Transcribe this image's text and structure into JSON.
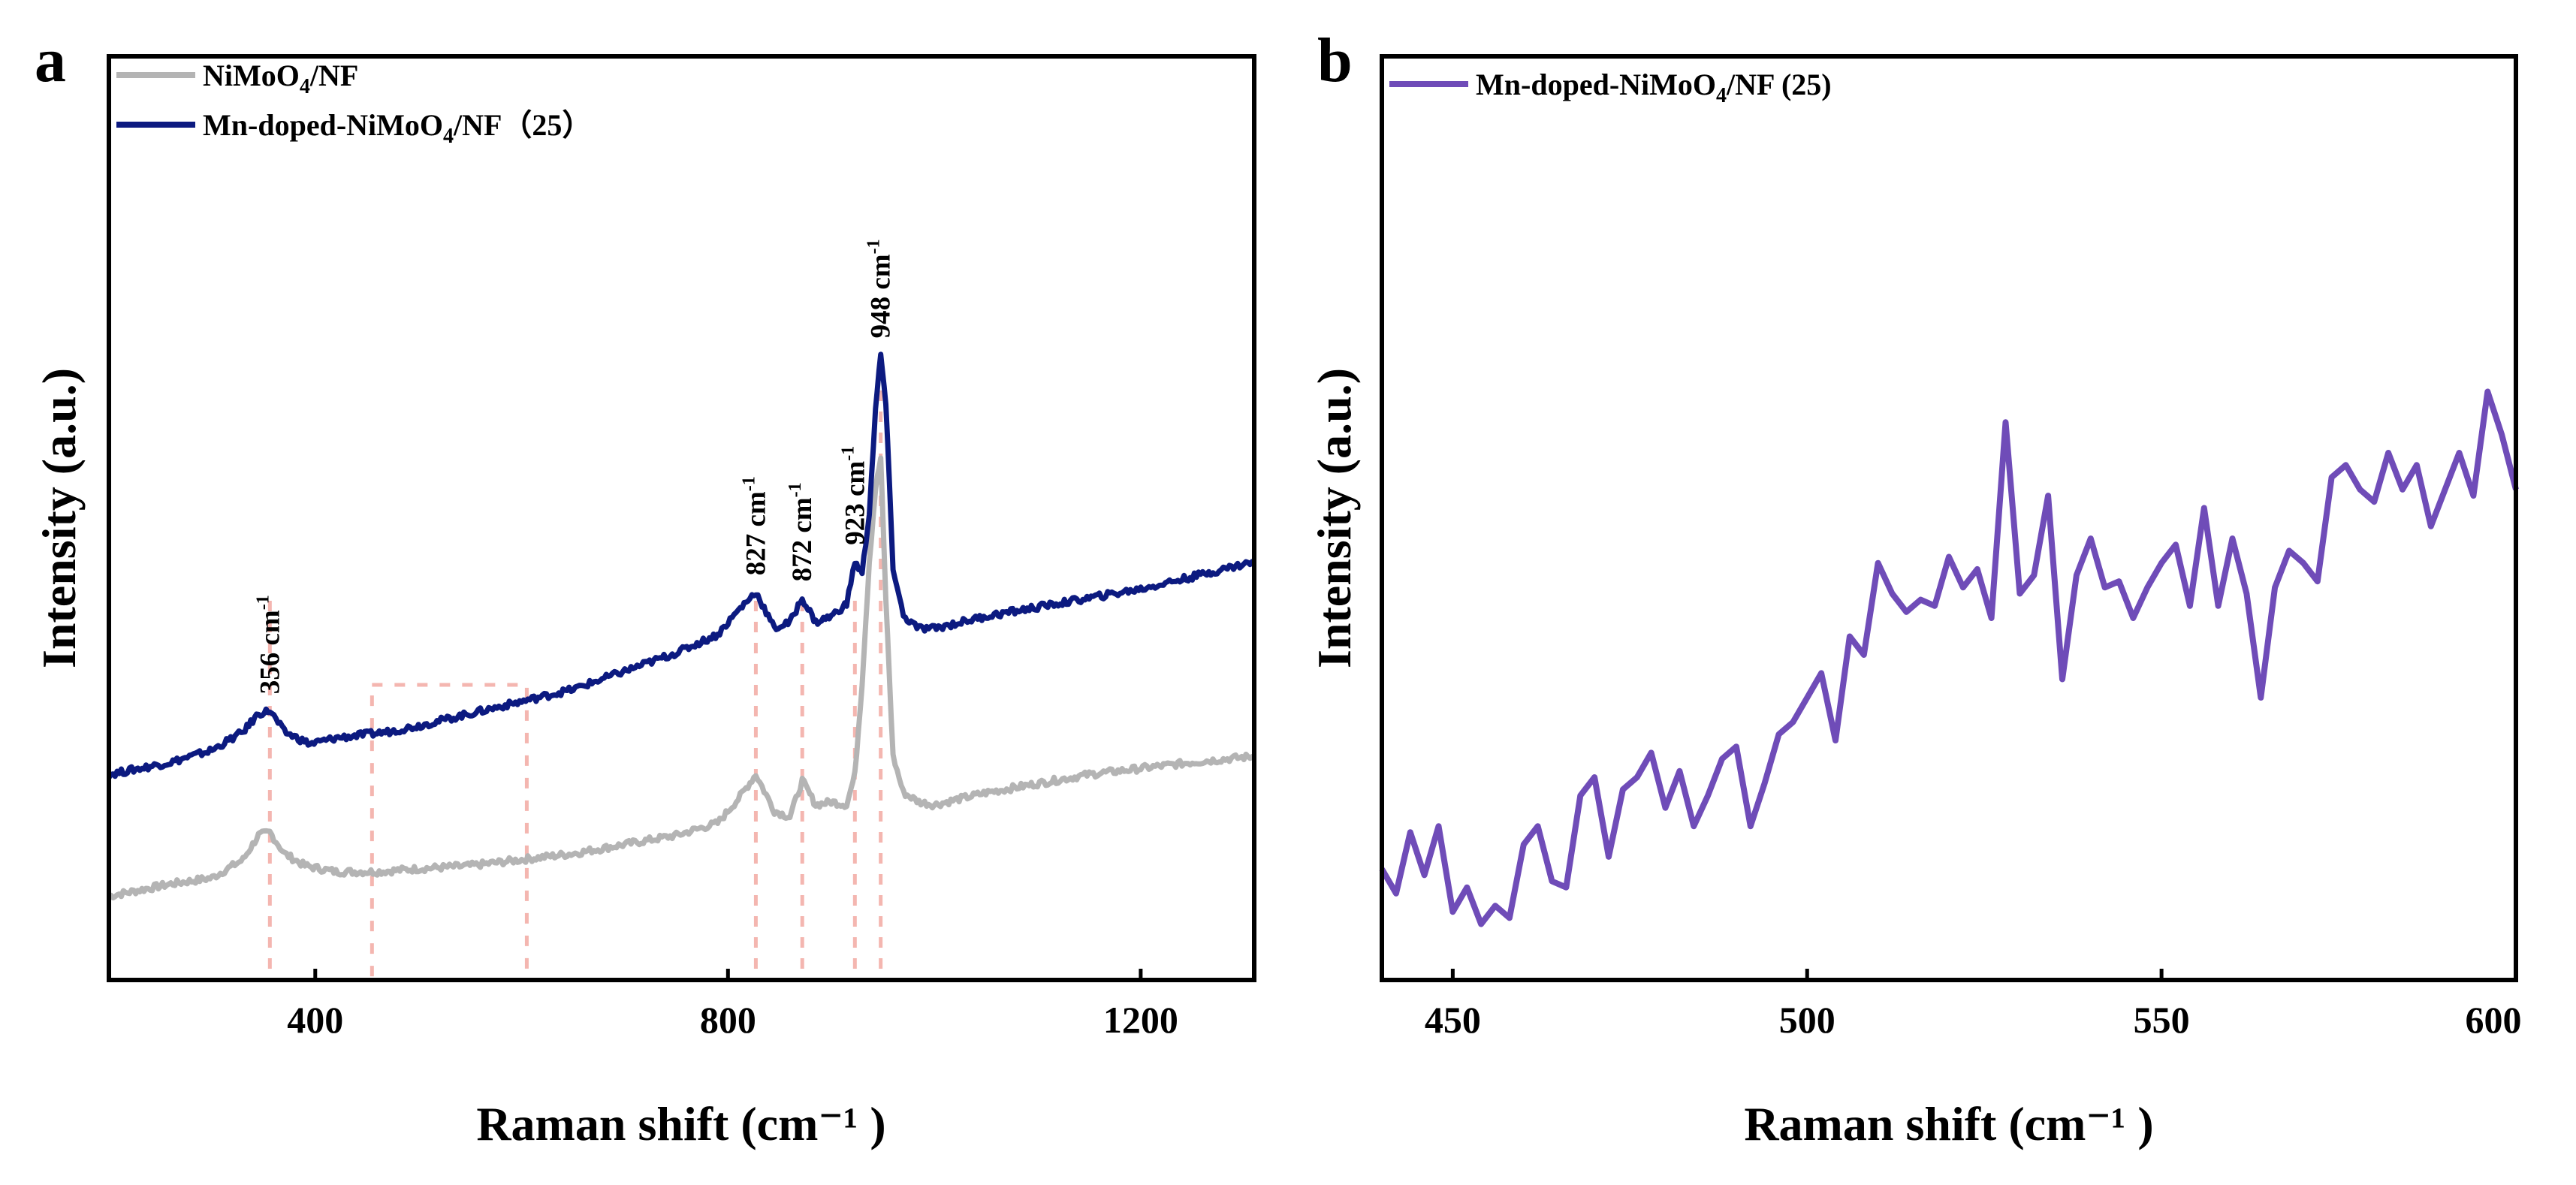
{
  "chart_data": [
    {
      "panel": "a",
      "type": "line",
      "xlabel": "Raman shift (cm⁻¹ )",
      "ylabel": "Intensity (a.u.)",
      "xlim": [
        200,
        1310
      ],
      "ylim": [
        0,
        100
      ],
      "xticks": [
        400,
        800,
        1200
      ],
      "yticks_shown": false,
      "legend_position": "top-left",
      "series": [
        {
          "name": "NiMoO",
          "name_sub": "4",
          "name_suffix": "/NF",
          "color": "#b4b4b4",
          "x": [
            200,
            260,
            300,
            330,
            345,
            356,
            370,
            390,
            420,
            460,
            500,
            550,
            600,
            650,
            700,
            750,
            790,
            810,
            827,
            845,
            860,
            872,
            885,
            900,
            915,
            923,
            930,
            937,
            943,
            948,
            953,
            960,
            970,
            985,
            1000,
            1050,
            1100,
            1150,
            1200,
            1250,
            1310
          ],
          "values": [
            7,
            9,
            10,
            13,
            17,
            17.5,
            14,
            12,
            11,
            11,
            11.5,
            12,
            13,
            14,
            15.5,
            17,
            19,
            23,
            27,
            21,
            20,
            26,
            22,
            22.5,
            22,
            27,
            42,
            62,
            74,
            79,
            56,
            30,
            24,
            22.5,
            22,
            24,
            25.5,
            27,
            28,
            29,
            30
          ]
        },
        {
          "name": "Mn-doped-NiMoO",
          "name_sub": "4",
          "name_suffix": "/NF（25）",
          "color": "#0c1a80",
          "x": [
            200,
            260,
            300,
            330,
            345,
            356,
            370,
            395,
            420,
            470,
            500,
            550,
            600,
            650,
            700,
            750,
            790,
            810,
            827,
            845,
            860,
            872,
            885,
            900,
            915,
            923,
            930,
            937,
            943,
            948,
            953,
            960,
            970,
            985,
            1000,
            1050,
            1100,
            1150,
            1200,
            1250,
            1310
          ],
          "values": [
            27,
            29,
            31,
            34,
            37,
            37.5,
            34,
            32,
            33,
            34,
            35,
            37,
            39,
            41,
            44,
            47,
            50,
            54,
            57,
            51,
            52,
            56,
            52,
            53,
            55,
            62,
            60,
            70,
            87,
            96,
            88,
            61,
            53,
            51,
            51,
            53,
            54.5,
            56,
            57.5,
            59.5,
            62
          ]
        }
      ],
      "annotations": [
        {
          "text": "356 cm",
          "sup": "-1",
          "x": 356
        },
        {
          "text": "827 cm",
          "sup": "-1",
          "x": 827
        },
        {
          "text": "872 cm",
          "sup": "-1",
          "x": 872
        },
        {
          "text": "923 cm",
          "sup": "-1",
          "x": 923
        },
        {
          "text": "948 cm",
          "sup": "-1",
          "x": 948
        }
      ],
      "highlight_region": [
        455,
        605
      ]
    },
    {
      "panel": "b",
      "type": "line",
      "xlabel": "Raman shift (cm⁻¹ )",
      "ylabel": "Intensity (a.u.)",
      "xlim": [
        440,
        600
      ],
      "ylim": [
        0,
        100
      ],
      "xticks": [
        450,
        500,
        550,
        600
      ],
      "yticks_shown": false,
      "legend_position": "top-left",
      "series": [
        {
          "name": "Mn-doped-NiMoO",
          "name_sub": "4",
          "name_suffix": "/NF (25)",
          "color": "#6f4cb8",
          "x": [
            440,
            442,
            444,
            446,
            448,
            450,
            452,
            454,
            456,
            458,
            460,
            462,
            464,
            466,
            468,
            470,
            472,
            474,
            476,
            478,
            480,
            482,
            484,
            486,
            488,
            490,
            492,
            494,
            496,
            498,
            500,
            502,
            504,
            506,
            508,
            510,
            512,
            514,
            516,
            518,
            520,
            522,
            524,
            526,
            528,
            530,
            532,
            534,
            536,
            538,
            540,
            542,
            544,
            546,
            548,
            550,
            552,
            554,
            556,
            558,
            560,
            562,
            564,
            566,
            568,
            570,
            572,
            574,
            576,
            578,
            580,
            582,
            584,
            586,
            588,
            590,
            592,
            594,
            596,
            598,
            600
          ],
          "values": [
            12,
            8,
            18,
            11,
            19,
            5,
            9,
            3,
            6,
            4,
            16,
            19,
            10,
            9,
            24,
            27,
            14,
            25,
            27,
            31,
            22,
            28,
            19,
            24,
            30,
            32,
            19,
            26,
            34,
            36,
            40,
            44,
            33,
            50,
            47,
            62,
            57,
            54,
            56,
            55,
            63,
            58,
            61,
            53,
            85,
            57,
            60,
            73,
            43,
            60,
            66,
            58,
            59,
            53,
            58,
            62,
            65,
            55,
            71,
            55,
            66,
            57,
            40,
            58,
            64,
            62,
            59,
            76,
            78,
            74,
            72,
            80,
            74,
            78,
            68,
            74,
            80,
            73,
            90,
            83,
            74
          ]
        }
      ]
    }
  ],
  "panel_a_letter": "a",
  "panel_b_letter": "b",
  "theme": {
    "axis_color": "#000000",
    "highlight_color": "#f4b6b0"
  }
}
